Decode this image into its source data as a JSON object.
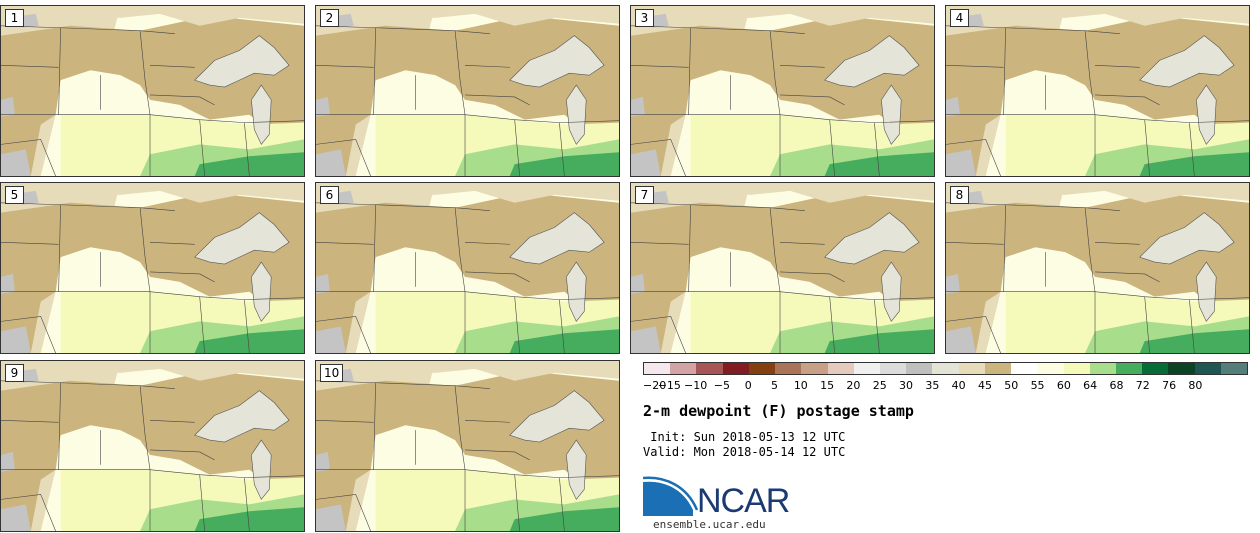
{
  "title": "2-m dewpoint (F) postage stamp",
  "init": " Init: Sun 2018-05-13 12 UTC",
  "valid": "Valid: Mon 2018-05-14 12 UTC",
  "logo_text": "NCAR",
  "url": "ensemble.ucar.edu",
  "panels": [
    "1",
    "2",
    "3",
    "4",
    "5",
    "6",
    "7",
    "8",
    "9",
    "10"
  ],
  "colorbar": {
    "colors": [
      "#f5e8ec",
      "#d4a3a6",
      "#a85557",
      "#831b22",
      "#854012",
      "#a97457",
      "#c8a088",
      "#e5cbbe",
      "#f0f0f0",
      "#dcdcdc",
      "#bfbfbf",
      "#e3e4d6",
      "#e6dcba",
      "#cbb47d",
      "#ffffff",
      "#fdfde4",
      "#f5f9b9",
      "#a8dd8c",
      "#45ad5d",
      "#086c36",
      "#0b4324",
      "#1e5654",
      "#557d7a"
    ],
    "ticks": [
      "−20",
      "−15",
      "−10",
      "−5",
      "0",
      "5",
      "10",
      "15",
      "20",
      "25",
      "30",
      "35",
      "40",
      "45",
      "50",
      "55",
      "60",
      "64",
      "68",
      "72",
      "76",
      "80"
    ]
  },
  "colors": {
    "dry_tan": "#cbb47d",
    "light_tan": "#e6dcba",
    "grey": "#c4c4c4",
    "light_yellow": "#fdfde4",
    "yellow": "#f5f9b9",
    "light_green": "#a8dd8c",
    "green": "#45ad5d",
    "ncar_blue": "#1b6fb5",
    "lake": "#e4e4d8"
  }
}
